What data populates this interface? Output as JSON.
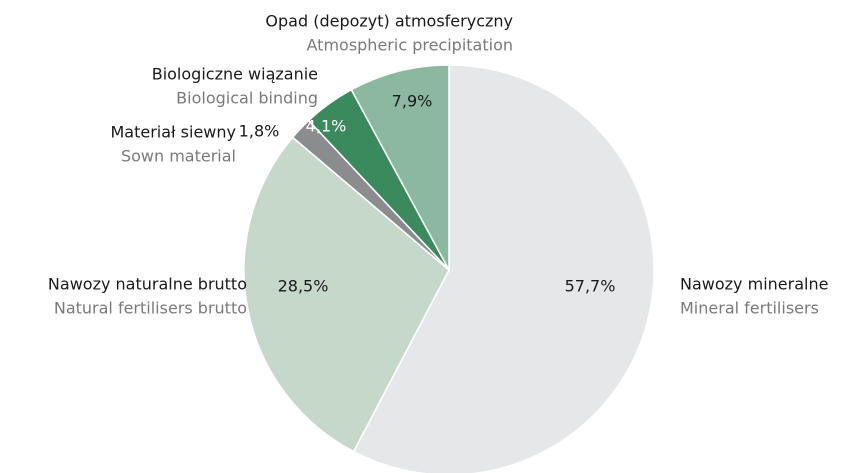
{
  "chart_data": {
    "type": "pie",
    "categories": [
      "Nawozy mineralne",
      "Nawozy naturalne brutto",
      "Materiał siewny",
      "Biologiczne wiązanie",
      "Opad (depozyt) atmosferyczny"
    ],
    "categories_en": [
      "Mineral fertilisers",
      "Natural fertilisers brutto",
      "Sown material",
      "Biological binding",
      "Atmospheric precipitation"
    ],
    "values": [
      57.7,
      28.5,
      1.8,
      4.1,
      7.9
    ],
    "value_labels": [
      "57,7%",
      "28,5%",
      "1,8%",
      "4,1%",
      "7,9%"
    ],
    "colors": [
      "#e6e7e8",
      "#c5d8ca",
      "#8a8c8e",
      "#3a8a5e",
      "#8db8a0"
    ]
  }
}
